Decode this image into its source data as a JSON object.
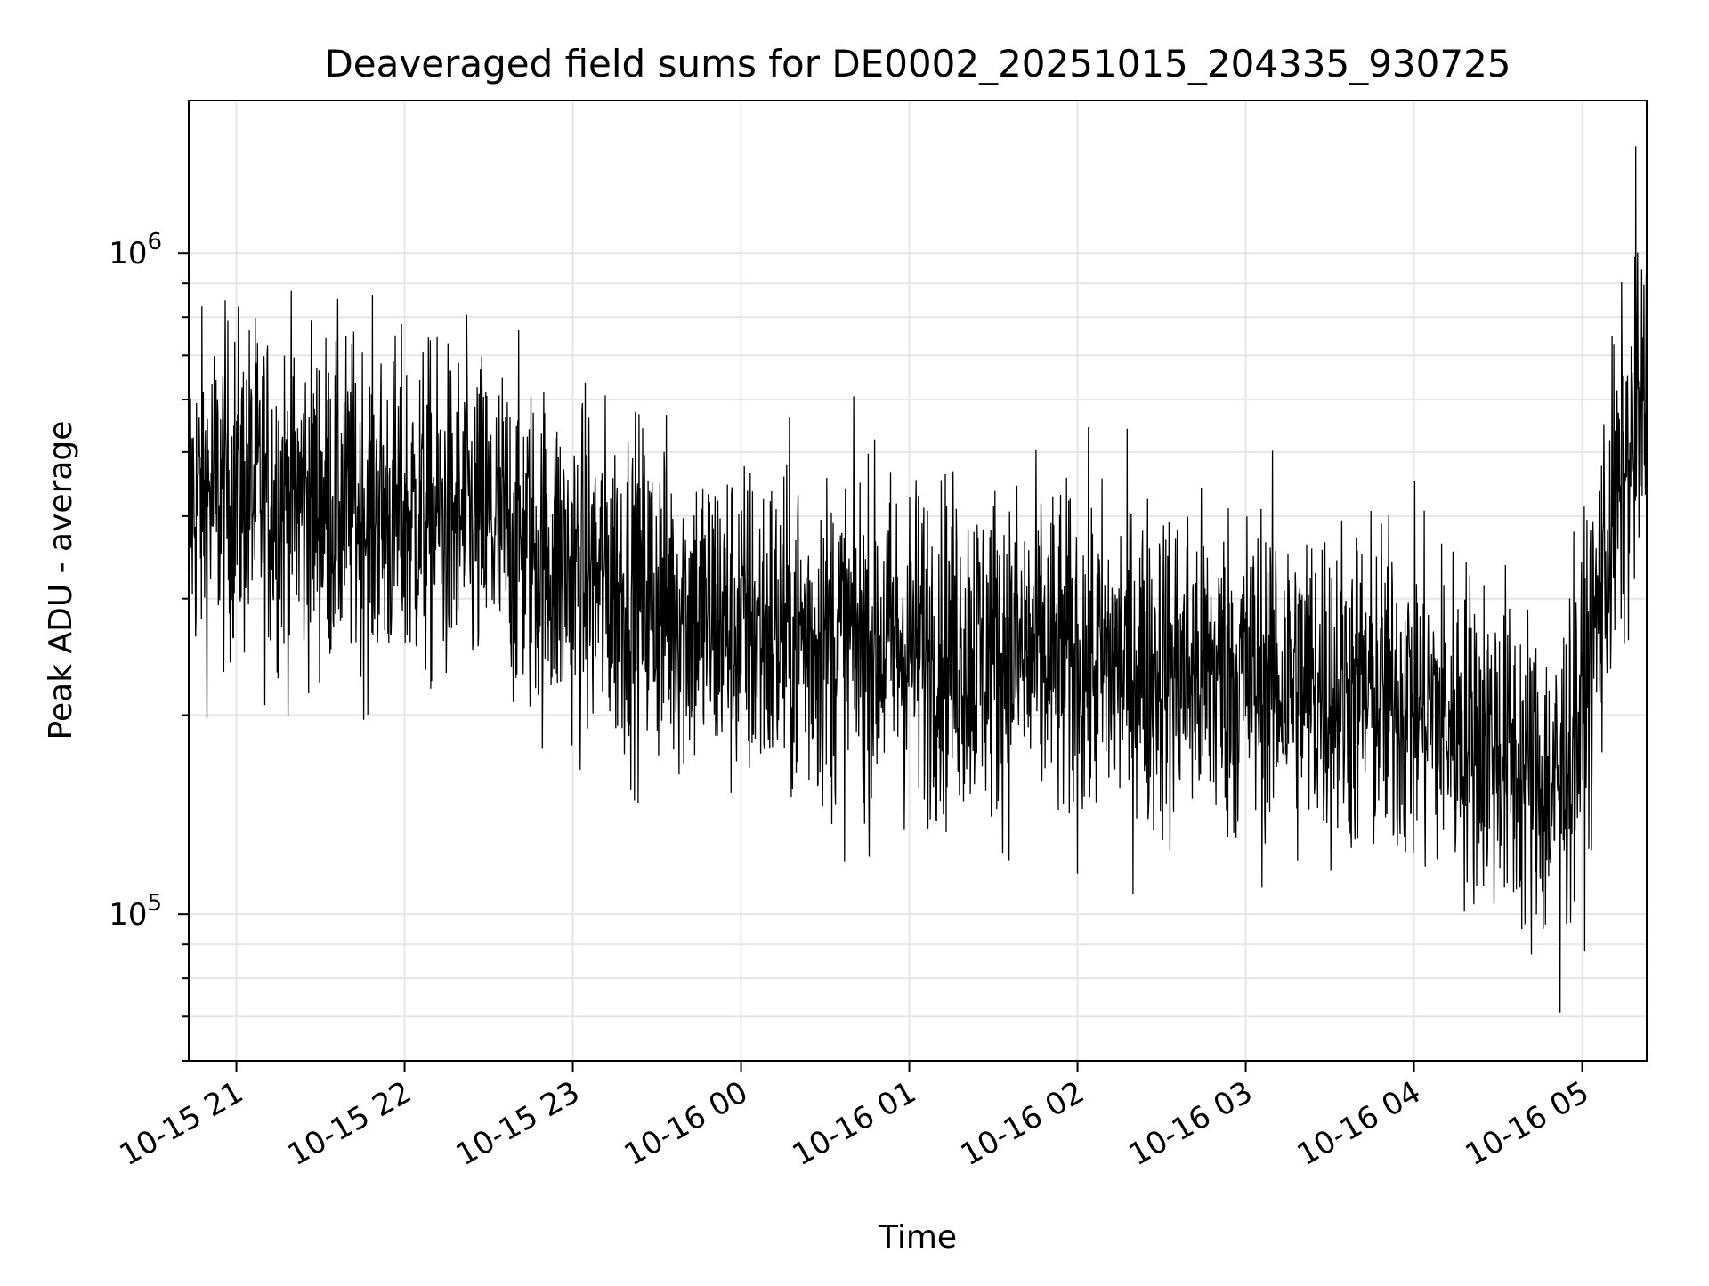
{
  "chart_data": {
    "type": "line",
    "title": "Deaveraged field sums for DE0002_20251015_204335_930725",
    "xlabel": "Time",
    "ylabel": "Peak ADU - average",
    "x_axis": {
      "kind": "datetime",
      "range": [
        "2025-10-15 20:43",
        "2025-10-16 05:23"
      ],
      "ticks": [
        {
          "value": "2025-10-15 21:00",
          "label": "10-15 21"
        },
        {
          "value": "2025-10-15 22:00",
          "label": "10-15 22"
        },
        {
          "value": "2025-10-15 23:00",
          "label": "10-15 23"
        },
        {
          "value": "2025-10-16 00:00",
          "label": "10-16 00"
        },
        {
          "value": "2025-10-16 01:00",
          "label": "10-16 01"
        },
        {
          "value": "2025-10-16 02:00",
          "label": "10-16 02"
        },
        {
          "value": "2025-10-16 03:00",
          "label": "10-16 03"
        },
        {
          "value": "2025-10-16 04:00",
          "label": "10-16 04"
        },
        {
          "value": "2025-10-16 05:00",
          "label": "10-16 05"
        }
      ]
    },
    "y_axis": {
      "scale": "log",
      "range": [
        60000,
        1700000
      ],
      "major_ticks": [
        {
          "value": 100000,
          "base": "10",
          "exponent": "5"
        },
        {
          "value": 1000000,
          "base": "10",
          "exponent": "6"
        }
      ]
    },
    "grid": true,
    "line_color": "#000000",
    "series": [
      {
        "points": [
          [
            "2025-10-15 20:43",
            420000
          ],
          [
            "2025-10-15 21:00",
            440000
          ],
          [
            "2025-10-15 21:30",
            420000
          ],
          [
            "2025-10-15 22:00",
            400000
          ],
          [
            "2025-10-15 22:30",
            390000
          ],
          [
            "2025-10-15 23:00",
            330000
          ],
          [
            "2025-10-15 23:30",
            300000
          ],
          [
            "2025-10-16 00:00",
            270000
          ],
          [
            "2025-10-16 00:30",
            260000
          ],
          [
            "2025-10-16 01:00",
            255000
          ],
          [
            "2025-10-16 01:30",
            250000
          ],
          [
            "2025-10-16 02:00",
            240000
          ],
          [
            "2025-10-16 02:30",
            235000
          ],
          [
            "2025-10-16 03:00",
            230000
          ],
          [
            "2025-10-16 03:30",
            220000
          ],
          [
            "2025-10-16 04:00",
            210000
          ],
          [
            "2025-10-16 04:30",
            180000
          ],
          [
            "2025-10-16 04:50",
            150000
          ],
          [
            "2025-10-16 05:00",
            200000
          ],
          [
            "2025-10-16 05:10",
            380000
          ],
          [
            "2025-10-16 05:23",
            600000
          ]
        ],
        "peak_max": [
          "2025-10-16 05:19",
          1450000
        ],
        "trough_min": [
          "2025-10-16 04:52",
          71000
        ]
      }
    ]
  }
}
